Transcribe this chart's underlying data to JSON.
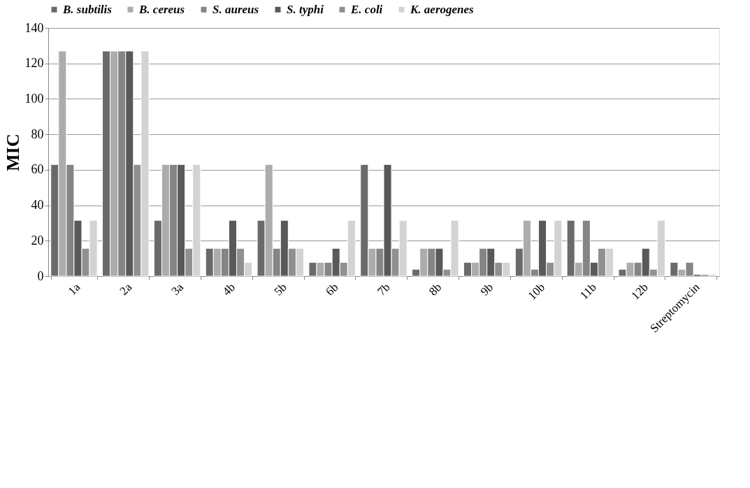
{
  "chart_data": {
    "type": "bar",
    "ylabel": "MIC",
    "categories": [
      "1a",
      "2a",
      "3a",
      "4b",
      "5b",
      "6b",
      "7b",
      "8b",
      "9b",
      "10b",
      "11b",
      "12b",
      "Streptomycin"
    ],
    "series": [
      {
        "name": "B. subtilis",
        "color": "#6a6a6a",
        "values": [
          63,
          127,
          31.5,
          15.7,
          31.5,
          7.8,
          63,
          3.9,
          7.8,
          15.7,
          31.5,
          3.9,
          7.8
        ]
      },
      {
        "name": "B. cereus",
        "color": "#acacac",
        "values": [
          127,
          127,
          63,
          15.7,
          63,
          7.8,
          15.7,
          15.7,
          7.8,
          31.5,
          7.8,
          7.8,
          3.9
        ]
      },
      {
        "name": "S. aureus",
        "color": "#858585",
        "values": [
          63,
          127,
          63,
          15.7,
          15.7,
          7.8,
          15.7,
          15.7,
          15.7,
          3.9,
          31.5,
          7.8,
          7.8
        ]
      },
      {
        "name": "S. typhi",
        "color": "#595959",
        "values": [
          31.5,
          127,
          63,
          31.5,
          31.5,
          15.7,
          63,
          15.7,
          15.7,
          31.5,
          7.8,
          15.7,
          1
        ]
      },
      {
        "name": "E. coli",
        "color": "#909090",
        "values": [
          15.7,
          63,
          15.7,
          15.7,
          15.7,
          7.8,
          15.7,
          3.9,
          7.8,
          7.8,
          15.7,
          3.9,
          1
        ]
      },
      {
        "name": "K. aerogenes",
        "color": "#d3d3d3",
        "values": [
          31.5,
          127,
          63,
          7.8,
          15.7,
          31.5,
          31.5,
          31.5,
          7.8,
          31.5,
          15.7,
          31.5,
          1
        ]
      }
    ],
    "ylim": [
      0,
      140
    ],
    "yticks": [
      0,
      20,
      40,
      60,
      80,
      100,
      120,
      140
    ],
    "grid": "y",
    "legend": "top"
  }
}
